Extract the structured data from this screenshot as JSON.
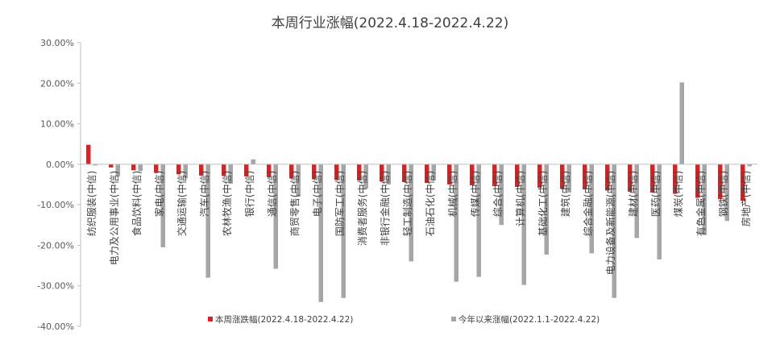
{
  "chart_data": {
    "type": "bar",
    "title": "本周行业涨幅(2022.4.18-2022.4.22)",
    "xlabel": "",
    "ylabel": "",
    "ylim": [
      -40,
      30
    ],
    "yticks": [
      "30.00%",
      "20.00%",
      "10.00%",
      "0.00%",
      "-10.00%",
      "-20.00%",
      "-30.00%",
      "-40.00%"
    ],
    "ytick_values": [
      30,
      20,
      10,
      0,
      -10,
      -20,
      -30,
      -40
    ],
    "grid": false,
    "legend_position": "bottom",
    "categories": [
      "纺织服装(中信)",
      "电力及公用事业(中信)",
      "食品饮料(中信)",
      "家电(中信)",
      "交通运输(中信)",
      "汽车(中信)",
      "农林牧渔(中信)",
      "银行(中信)",
      "通信(中信)",
      "商贸零售(中信)",
      "电子(中信)",
      "国防军工(中信)",
      "消费者服务(中信)",
      "非银行金融(中信)",
      "轻工制造(中信)",
      "石油石化(中信)",
      "机械(中信)",
      "传媒(中信)",
      "综合(中信)",
      "计算机(中信)",
      "基础化工(中信)",
      "建筑(中信)",
      "综合金融(中信)",
      "电力设备及新能源(中信)",
      "建材(中信)",
      "医药(中信)",
      "煤炭(中信)",
      "有色金属(中信)",
      "钢铁(中信)",
      "房地产(中信)"
    ],
    "series": [
      {
        "name": "本周涨跌幅(2022.4.18-2022.4.22)",
        "color": "#e02020",
        "values": [
          4.8,
          -0.8,
          -1.5,
          -2.1,
          -2.5,
          -2.8,
          -2.9,
          -3.0,
          -3.2,
          -3.5,
          -3.7,
          -3.9,
          -4.0,
          -4.2,
          -4.4,
          -4.6,
          -5.0,
          -5.2,
          -5.4,
          -5.6,
          -5.8,
          -6.0,
          -6.2,
          -6.5,
          -6.8,
          -7.0,
          -7.3,
          -8.3,
          -8.6,
          -9.0
        ]
      },
      {
        "name": "今年以来涨幅(2022.1.1-2022.4.22)",
        "color": "#a6a6a6",
        "values": [
          -0.3,
          -3.0,
          -1.7,
          -20.5,
          -3.5,
          -28.0,
          -4.8,
          1.2,
          -25.8,
          -8.0,
          -34.0,
          -33.0,
          -6.0,
          -5.0,
          -24.0,
          -4.0,
          -29.0,
          -27.8,
          -15.0,
          -29.8,
          -22.3,
          -7.0,
          -22.0,
          -33.0,
          -18.2,
          -23.5,
          20.2,
          -17.5,
          -14.0,
          -0.5
        ]
      }
    ]
  }
}
